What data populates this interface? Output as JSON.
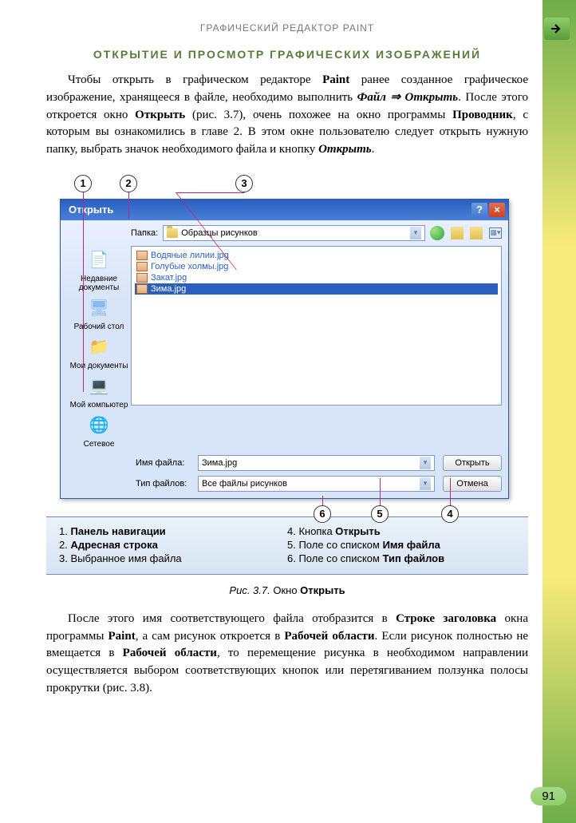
{
  "chapter_header": "ГРАФИЧЕСКИЙ РЕДАКТОР PAINT",
  "section_title": "ОТКРЫТИЕ И ПРОСМОТР ГРАФИЧЕСКИХ ИЗОБРАЖЕНИЙ",
  "page_number": "91",
  "paragraph1_html": "Чтобы открыть в графическом редакторе <b>Paint</b> ранее созданное графическое изображение, хранящееся в файле, необходимо выполнить <b><i>Файл ⇒ Открыть</i></b>. После этого откроется окно <b>Открыть</b> (рис. 3.7), очень похожее на окно программы <b>Проводник</b>, с которым вы ознакомились в главе 2. В этом окне пользователю следует открыть нужную папку, выбрать значок необходимого файла и кнопку <b><i>Открыть</i></b>.",
  "paragraph2_html": "После этого имя соответствующего файла отобразится в <b>Строке заголовка</b> окна программы <b>Paint</b>, а сам рисунок откроется в <b>Рабочей области</b>. Если рисунок полностью не вмещается в <b>Рабочей области</b>, то перемещение рисунка в необходимом направлении осуществляется выбором соответствующих кнопок или перетягиванием ползунка полосы прокрутки (рис. 3.8).",
  "dialog": {
    "title": "Открыть",
    "folder_label": "Папка:",
    "folder_value": "Образцы рисунков",
    "files": [
      {
        "name": "Водяные лилии.jpg",
        "selected": false
      },
      {
        "name": "Голубые холмы.jpg",
        "selected": false
      },
      {
        "name": "Закат.jpg",
        "selected": false
      },
      {
        "name": "Зима.jpg",
        "selected": true
      }
    ],
    "sidebar": [
      {
        "label": "Недавние документы",
        "color": "#6a9ae0",
        "glyph": "📄"
      },
      {
        "label": "Рабочий стол",
        "color": "#8ab8f0",
        "glyph": "🖥"
      },
      {
        "label": "Мои документы",
        "color": "#e0c050",
        "glyph": "📁"
      },
      {
        "label": "Мой компьютер",
        "color": "#b0c8d8",
        "glyph": "💻"
      },
      {
        "label": "Сетевое",
        "color": "#5aa050",
        "glyph": "🌐"
      }
    ],
    "filename_label": "Имя файла:",
    "filename_value": "Зима.jpg",
    "filetype_label": "Тип файлов:",
    "filetype_value": "Все файлы рисунков",
    "open_btn": "Открыть",
    "cancel_btn": "Отмена"
  },
  "callouts": {
    "c1": "1",
    "c2": "2",
    "c3": "3",
    "c4": "4",
    "c5": "5",
    "c6": "6"
  },
  "legend": {
    "l1_html": "1. <b>Панель навигации</b>",
    "l2_html": "2. <b>Адресная строка</b>",
    "l3_html": "3. Выбранное имя файла",
    "l4_html": "4. Кнопка <b>Открыть</b>",
    "l5_html": "5. Поле со списком <b>Имя файла</b>",
    "l6_html": "6. Поле со списком <b>Тип файлов</b>"
  },
  "fig_caption_html": "<i>Рис. 3.7.</i> Окно <b>Открыть</b>"
}
